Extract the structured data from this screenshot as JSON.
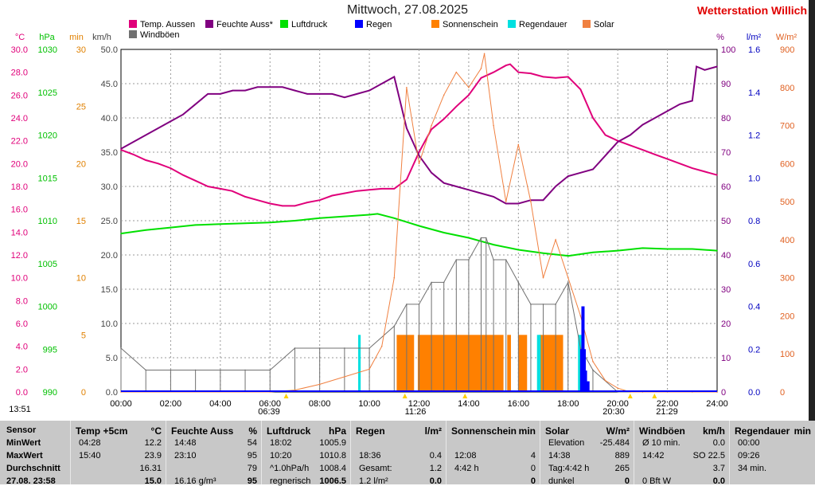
{
  "title": "Mittwoch, 27.08.2025",
  "station": "Wetterstation Willich",
  "units": {
    "temp": "°C",
    "hpa": "hPa",
    "min": "min",
    "kmh": "km/h",
    "pct": "%",
    "lm2": "l/m²",
    "wm2": "W/m²"
  },
  "legend": [
    {
      "label": "Temp. Aussen",
      "color": "#e0007a"
    },
    {
      "label": "Feuchte Auss*",
      "color": "#800080"
    },
    {
      "label": "Luftdruck",
      "color": "#00e000"
    },
    {
      "label": "Regen",
      "color": "#0000ff"
    },
    {
      "label": "Sonnenschein",
      "color": "#ff8000"
    },
    {
      "label": "Regendauer",
      "color": "#00e0e0"
    },
    {
      "label": "Solar",
      "color": "#f08040"
    },
    {
      "label": "Windböen",
      "color": "#707070"
    }
  ],
  "axes": {
    "temp_ticks": [
      "30.0",
      "28.0",
      "26.0",
      "24.0",
      "22.0",
      "20.0",
      "18.0",
      "16.0",
      "14.0",
      "12.0",
      "10.0",
      "8.0",
      "6.0",
      "4.0",
      "2.0",
      "0.0"
    ],
    "hpa_ticks": [
      "1030",
      "1025",
      "1020",
      "1015",
      "1010",
      "1005",
      "1000",
      "995",
      "990"
    ],
    "min_ticks": [
      "30",
      "25",
      "20",
      "15",
      "10",
      "5",
      "0"
    ],
    "kmh_ticks": [
      "50.0",
      "45.0",
      "40.0",
      "35.0",
      "30.0",
      "25.0",
      "20.0",
      "15.0",
      "10.0",
      "5.0",
      "0.0"
    ],
    "pct_ticks": [
      "100",
      "90",
      "80",
      "70",
      "60",
      "50",
      "40",
      "30",
      "20",
      "10",
      "0"
    ],
    "lm2_ticks": [
      "1.6",
      "1.4",
      "1.2",
      "1.0",
      "0.8",
      "0.6",
      "0.4",
      "0.2",
      "0.0"
    ],
    "wm2_ticks": [
      "900",
      "800",
      "700",
      "600",
      "500",
      "400",
      "300",
      "200",
      "100",
      "0"
    ],
    "x_ticks": [
      "00:00",
      "02:00",
      "04:00",
      "06:00",
      "08:00",
      "10:00",
      "12:00",
      "14:00",
      "16:00",
      "18:00",
      "20:00",
      "22:00",
      "24:00"
    ]
  },
  "time_markers": {
    "now": "13:51",
    "sunrise": "06:39",
    "solar_noon": "11:26",
    "sunset": "20:30",
    "dusk": "21:29"
  },
  "chart_data": {
    "type": "line",
    "x_unit": "hours",
    "xlim": [
      0,
      24
    ],
    "series": [
      {
        "name": "Temp. Aussen",
        "unit": "°C",
        "ylim": [
          0,
          30
        ],
        "x": [
          0,
          0.5,
          1,
          1.5,
          2,
          2.5,
          3,
          3.5,
          4,
          4.47,
          5,
          5.5,
          6,
          6.5,
          7,
          7.5,
          8,
          8.5,
          9,
          9.5,
          10,
          10.5,
          11,
          11.5,
          12,
          12.5,
          13,
          13.5,
          14,
          14.5,
          15,
          15.5,
          15.67,
          16,
          16.5,
          17,
          17.5,
          18,
          18.5,
          19,
          19.5,
          20,
          20.5,
          21,
          21.5,
          22,
          22.5,
          23,
          23.5,
          24
        ],
        "y": [
          21.2,
          20.8,
          20.3,
          20.0,
          19.6,
          19.0,
          18.5,
          18.0,
          17.8,
          17.6,
          17.1,
          16.8,
          16.5,
          16.3,
          16.3,
          16.6,
          16.8,
          17.2,
          17.4,
          17.6,
          17.7,
          17.8,
          17.8,
          18.6,
          21.0,
          23.0,
          23.9,
          25.0,
          26.0,
          27.5,
          28.0,
          28.6,
          28.7,
          28.0,
          27.9,
          27.6,
          27.5,
          27.6,
          26.5,
          24.0,
          22.5,
          22.0,
          21.6,
          21.2,
          20.8,
          20.4,
          20.0,
          19.6,
          19.3,
          19.0
        ]
      },
      {
        "name": "Feuchte Auss*",
        "unit": "%",
        "ylim": [
          0,
          100
        ],
        "x": [
          0,
          0.5,
          1,
          1.5,
          2,
          2.5,
          3,
          3.5,
          4,
          4.5,
          5,
          5.5,
          6,
          6.5,
          7,
          7.5,
          8,
          8.5,
          9,
          9.5,
          10,
          10.5,
          11,
          11.5,
          12,
          12.5,
          13,
          13.5,
          14,
          14.5,
          15,
          15.5,
          16,
          16.5,
          17,
          17.5,
          18,
          18.5,
          19,
          19.5,
          20,
          20.5,
          21,
          21.5,
          22,
          22.5,
          23,
          23.17,
          23.5,
          24
        ],
        "y": [
          71,
          73,
          75,
          77,
          79,
          81,
          84,
          87,
          87,
          88,
          88,
          89,
          89,
          89,
          88,
          87,
          87,
          87,
          86,
          87,
          88,
          90,
          92,
          77,
          69,
          64,
          61,
          60,
          59,
          58,
          57,
          55,
          55,
          56,
          56,
          60,
          63,
          64,
          65,
          69,
          73,
          75,
          78,
          80,
          82,
          84,
          85,
          95,
          94,
          95
        ]
      },
      {
        "name": "Luftdruck",
        "unit": "hPa",
        "ylim": [
          990,
          1030
        ],
        "x": [
          0,
          1,
          2,
          3,
          4,
          5,
          6,
          7,
          8,
          9,
          10,
          10.33,
          11,
          12,
          13,
          14,
          15,
          16,
          17,
          18,
          18.03,
          19,
          20,
          21,
          22,
          23,
          24
        ],
        "y": [
          1008.5,
          1008.9,
          1009.2,
          1009.5,
          1009.6,
          1009.7,
          1009.8,
          1010.0,
          1010.3,
          1010.5,
          1010.7,
          1010.8,
          1010.3,
          1009.4,
          1008.6,
          1008.0,
          1007.2,
          1006.6,
          1006.2,
          1005.9,
          1005.9,
          1006.3,
          1006.5,
          1006.8,
          1006.7,
          1006.7,
          1006.5
        ]
      },
      {
        "name": "Windböen",
        "unit": "km/h",
        "ylim": [
          0,
          50
        ],
        "x": [
          0,
          1,
          2,
          3,
          4,
          5,
          6,
          7,
          8,
          9,
          10,
          11,
          11.5,
          12,
          12.5,
          13,
          13.5,
          14,
          14.5,
          14.7,
          15,
          15.5,
          16,
          16.5,
          17,
          17.5,
          18,
          18.5,
          19,
          20,
          21,
          22,
          23,
          24
        ],
        "y": [
          6.4,
          3.2,
          3.2,
          3.2,
          3.2,
          3.2,
          3.2,
          6.4,
          6.4,
          6.4,
          6.4,
          9.6,
          12.8,
          12.8,
          16.0,
          16.0,
          19.3,
          19.3,
          22.5,
          22.5,
          19.3,
          19.3,
          16.0,
          12.8,
          12.8,
          12.8,
          16.0,
          6.4,
          3.2,
          0,
          0,
          0,
          0,
          0
        ]
      },
      {
        "name": "Solar",
        "unit": "W/m²",
        "ylim": [
          0,
          900
        ],
        "x": [
          0,
          6,
          7,
          8,
          9,
          10,
          10.5,
          11,
          11.5,
          12,
          12.5,
          13,
          13.5,
          14,
          14.5,
          14.63,
          15,
          15.5,
          16,
          16.5,
          17,
          17.5,
          18,
          18.5,
          19,
          19.5,
          20,
          20.5,
          24
        ],
        "y": [
          0,
          0,
          5,
          20,
          40,
          60,
          120,
          300,
          800,
          600,
          700,
          780,
          840,
          800,
          850,
          889,
          700,
          500,
          650,
          500,
          300,
          400,
          300,
          200,
          80,
          30,
          10,
          0,
          0
        ]
      },
      {
        "name": "Regen",
        "unit": "l/m²",
        "ylim": [
          0,
          1.6
        ],
        "x": [
          18.55,
          18.6,
          18.65,
          18.7,
          18.8
        ],
        "y": [
          0.2,
          0.4,
          0.2,
          0.1,
          0.05
        ]
      }
    ],
    "sunshine_blocks": [
      [
        11.1,
        11.8
      ],
      [
        11.95,
        15.4
      ],
      [
        15.55,
        15.7
      ],
      [
        16.0,
        16.35
      ],
      [
        16.85,
        17.8
      ]
    ],
    "regendauer_blocks": [
      [
        9.55,
        9.65
      ],
      [
        16.75,
        16.9
      ],
      [
        18.4,
        18.6
      ]
    ]
  },
  "table": {
    "row_labels": [
      "Sensor",
      "MinWert",
      "MaxWert",
      "Durchschnitt",
      "27.08. 23:58"
    ],
    "cols": [
      {
        "header": "Temp +5cm",
        "unit": "°C",
        "rows": [
          [
            "04:28",
            "12.2"
          ],
          [
            "15:40",
            "23.9"
          ],
          [
            "",
            "16.31"
          ],
          [
            "",
            "15.0"
          ]
        ]
      },
      {
        "header": "Feuchte Auss",
        "unit": "%",
        "rows": [
          [
            "14:48",
            "54"
          ],
          [
            "23:10",
            "95"
          ],
          [
            "",
            "79"
          ],
          [
            "16.16 g/m³",
            "95"
          ]
        ]
      },
      {
        "header": "Luftdruck",
        "unit": "hPa",
        "rows": [
          [
            "18:02",
            "1005.9"
          ],
          [
            "10:20",
            "1010.8"
          ],
          [
            "^1.0hPa/h",
            "1008.4"
          ],
          [
            "regnerisch",
            "1006.5"
          ]
        ]
      },
      {
        "header": "Regen",
        "unit": "l/m²",
        "rows": [
          [
            "",
            ""
          ],
          [
            "18:36",
            "0.4"
          ],
          [
            "Gesamt:",
            "1.2"
          ],
          [
            "1.2 l/m²",
            "0.0"
          ]
        ]
      },
      {
        "header": "Sonnenschein",
        "unit": "min",
        "rows": [
          [
            "",
            ""
          ],
          [
            "12:08",
            "4"
          ],
          [
            "4:42 h",
            "0"
          ],
          [
            "",
            "0"
          ]
        ]
      },
      {
        "header": "Solar",
        "unit": "W/m²",
        "rows": [
          [
            "Elevation",
            "-25.484"
          ],
          [
            "14:38",
            "889"
          ],
          [
            "Tag:4:42 h",
            "265"
          ],
          [
            "dunkel",
            "0"
          ]
        ]
      },
      {
        "header": "Windböen",
        "unit": "km/h",
        "rows": [
          [
            "Ø 10 min.",
            "0.0"
          ],
          [
            "14:42",
            "SO 22.5"
          ],
          [
            "",
            "3.7"
          ],
          [
            "0 Bft W",
            "0.0"
          ]
        ]
      },
      {
        "header": "Regendauer",
        "unit": "min",
        "rows": [
          [
            "00:00",
            ""
          ],
          [
            "09:26",
            ""
          ],
          [
            "34 min.",
            ""
          ],
          [
            "",
            ""
          ]
        ]
      }
    ]
  }
}
